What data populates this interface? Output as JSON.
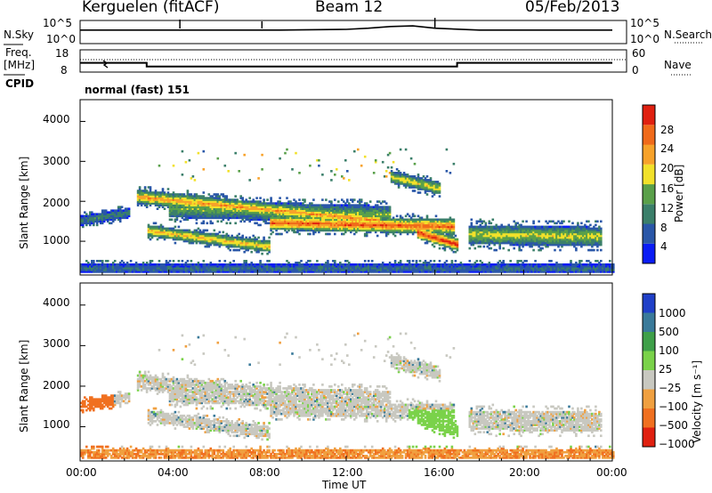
{
  "header": {
    "station": "Kerguelen (fitACF)",
    "beam": "Beam 12",
    "date": "05/Feb/2013"
  },
  "noise_panel": {
    "left_label": "N.Sky",
    "right_label": "N.Search",
    "left_ticks": [
      "10^5",
      "10^0"
    ],
    "right_ticks": [
      "10^5",
      "10^0"
    ]
  },
  "freq_panel": {
    "left_label_1": "Freq.",
    "left_label_2": "[MHz]",
    "right_label": "Nave",
    "left_ticks": [
      "18",
      "8"
    ],
    "right_ticks": [
      "60",
      "0"
    ]
  },
  "cpid": {
    "label": "CPID",
    "value": "normal (fast) 151"
  },
  "power_panel": {
    "ylabel": "Slant Range [km]",
    "yticks": [
      "4000",
      "3000",
      "2000",
      "1000"
    ],
    "colorbar_label": "Power [dB]",
    "colorbar_ticks": [
      "28",
      "24",
      "20",
      "16",
      "12",
      "8",
      "4"
    ],
    "colors": [
      "#0a1cf5",
      "#2a57a8",
      "#3b7f6a",
      "#5aa04a",
      "#f2e12a",
      "#f7a22a",
      "#f06a1a",
      "#e02010"
    ]
  },
  "velocity_panel": {
    "ylabel": "Slant Range [km]",
    "yticks": [
      "4000",
      "3000",
      "2000",
      "1000"
    ],
    "colorbar_label": "Velocity [m s⁻¹]",
    "colorbar_ticks": [
      "1000",
      "500",
      "100",
      "25",
      "−25",
      "−100",
      "−500",
      "−1000"
    ],
    "colors": [
      "#2040c8",
      "#3a7a9a",
      "#3fa04a",
      "#7ad24a",
      "#c8c8c0",
      "#f0a040",
      "#f07020",
      "#e02010"
    ]
  },
  "time_axis": {
    "label": "Time UT",
    "ticks": [
      "00:00",
      "04:00",
      "08:00",
      "12:00",
      "16:00",
      "20:00",
      "00:00"
    ]
  },
  "chart_data": [
    {
      "type": "line",
      "title": "N.Sky / N.Search",
      "x": [
        0,
        3,
        6,
        9,
        12,
        13,
        14,
        15,
        16,
        18,
        21,
        24
      ],
      "series": [
        {
          "name": "N.Sky",
          "values": [
            1000,
            1000,
            1000,
            1000,
            1500,
            3000,
            8000,
            12000,
            3000,
            1000,
            1000,
            1000
          ]
        }
      ],
      "xlabel": "Time UT",
      "ylim": [
        1,
        100000
      ],
      "yscale": "log"
    },
    {
      "type": "line",
      "title": "Freq. [MHz]",
      "x": [
        0,
        3,
        3,
        17,
        17,
        24
      ],
      "series": [
        {
          "name": "Freq.",
          "values": [
            12,
            12,
            10,
            10,
            12,
            12
          ]
        }
      ],
      "xlabel": "Time UT",
      "ylim": [
        8,
        18
      ]
    },
    {
      "type": "heatmap",
      "title": "Power [dB]",
      "xlabel": "Time UT",
      "ylabel": "Slant Range [km]",
      "xlim": [
        0,
        24
      ],
      "ylim": [
        200,
        4500
      ],
      "clim": [
        0,
        30
      ]
    },
    {
      "type": "heatmap",
      "title": "Velocity [m s-1]",
      "xlabel": "Time UT",
      "ylabel": "Slant Range [km]",
      "xlim": [
        0,
        24
      ],
      "ylim": [
        200,
        4500
      ],
      "clim": [
        -1000,
        1000
      ]
    }
  ]
}
